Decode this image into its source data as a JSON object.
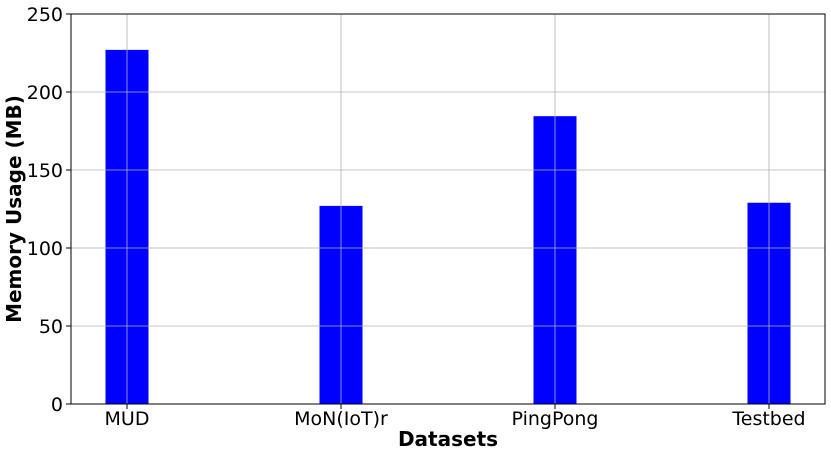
{
  "chart_data": {
    "type": "bar",
    "categories": [
      "MUD",
      "MoN(IoT)r",
      "PingPong",
      "Testbed"
    ],
    "series": [
      {
        "values": [
          227,
          127,
          184.5,
          129
        ]
      }
    ],
    "xlabel": "Datasets",
    "ylabel": "Memory Usage (MB)",
    "ylim": [
      0,
      250
    ],
    "yticks": [
      0,
      50,
      100,
      150,
      200,
      250
    ],
    "grid": true,
    "legend": "none",
    "bar_color": "#0000ff"
  }
}
